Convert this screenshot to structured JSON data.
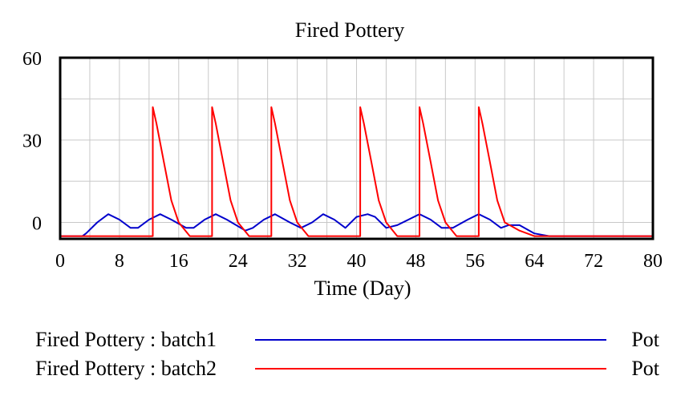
{
  "chart_data": {
    "type": "line",
    "title": "Fired Pottery",
    "xlabel": "Time (Day)",
    "ylabel": "",
    "xlim": [
      0,
      80
    ],
    "ylim": [
      -6,
      60
    ],
    "grid": true,
    "legend_position": "bottom",
    "x_ticks": [
      "0",
      "8",
      "16",
      "24",
      "32",
      "40",
      "48",
      "56",
      "64",
      "72",
      "80"
    ],
    "y_ticks": [
      "60",
      "30",
      "0"
    ],
    "colors": {
      "batch1": "#0000cc",
      "batch2": "#ff0000"
    },
    "series": [
      {
        "name": "Fired Pottery : batch1",
        "unit": "Pot",
        "color": "#0000cc",
        "x": [
          0,
          3,
          3.5,
          5,
          6.5,
          8,
          9.5,
          10.5,
          12,
          13.5,
          15,
          17,
          18,
          19.5,
          21,
          22.5,
          25,
          26,
          27.5,
          29,
          31,
          32.5,
          34,
          35.5,
          37,
          38.5,
          40,
          41.5,
          42.5,
          44,
          45.5,
          47,
          48.5,
          50,
          51.5,
          53,
          55,
          56.5,
          58,
          59.5,
          60.5,
          62,
          64,
          66,
          80
        ],
        "y": [
          -5,
          -5,
          -4,
          0,
          3,
          1,
          -2,
          -2,
          1,
          3,
          1,
          -2,
          -2,
          1,
          3,
          1,
          -3,
          -2,
          1,
          3,
          0,
          -2,
          0,
          3,
          1,
          -2,
          2,
          3,
          2,
          -2,
          -1,
          1,
          3,
          1,
          -2,
          -2,
          1,
          3,
          1,
          -2,
          -1,
          -1,
          -4,
          -5,
          -5
        ]
      },
      {
        "name": "Fired Pottery : batch2",
        "unit": "Pot",
        "color": "#ff0000",
        "x": [
          0,
          3.5,
          12.5,
          12.5,
          13,
          14,
          15,
          16,
          17.5,
          20.4,
          20.5,
          20.5,
          21,
          22,
          23,
          24,
          25.5,
          28.4,
          28.5,
          28.5,
          29,
          30,
          31,
          32,
          33.5,
          40.4,
          40.5,
          40.5,
          41,
          42,
          43,
          44,
          45.5,
          48.4,
          48.5,
          48.5,
          49,
          50,
          51,
          52,
          53.5,
          56.4,
          56.5,
          56.5,
          57,
          58,
          59,
          60,
          62,
          64,
          66,
          80
        ],
        "y": [
          -5,
          -5,
          -5,
          42,
          36,
          22,
          8,
          0,
          -5,
          -5,
          -5,
          42,
          36,
          22,
          8,
          0,
          -5,
          -5,
          -5,
          42,
          36,
          22,
          8,
          0,
          -5,
          -5,
          -5,
          42,
          36,
          22,
          8,
          0,
          -5,
          -5,
          -5,
          42,
          36,
          22,
          8,
          0,
          -5,
          -5,
          -5,
          42,
          36,
          22,
          8,
          0,
          -3,
          -5,
          -5,
          -5
        ]
      }
    ]
  },
  "legend": [
    {
      "label": "Fired Pottery : batch1",
      "unit": "Pot",
      "color": "#0000cc"
    },
    {
      "label": "Fired Pottery : batch2",
      "unit": "Pot",
      "color": "#ff0000"
    }
  ]
}
